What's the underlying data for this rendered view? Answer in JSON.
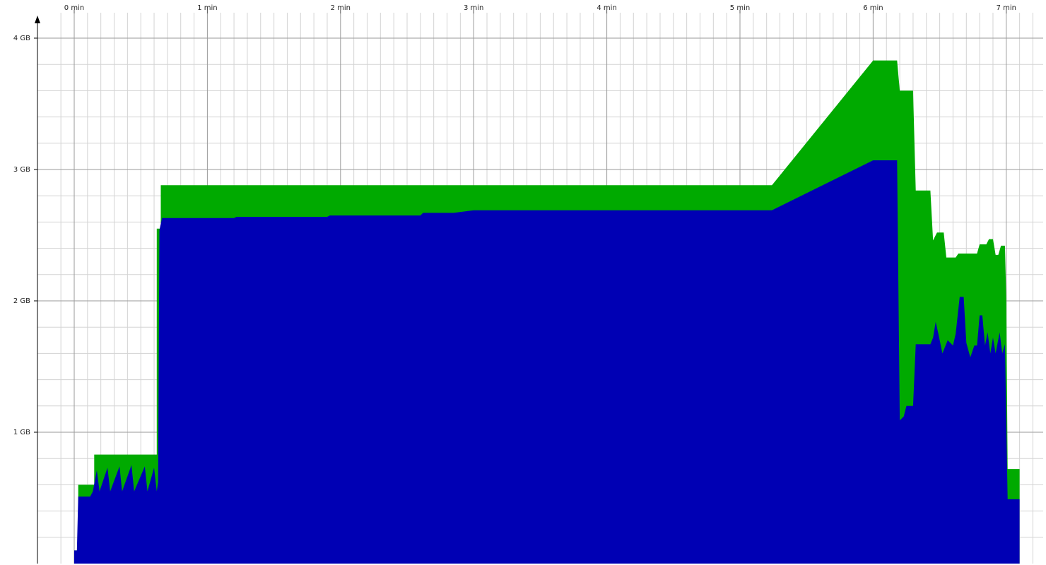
{
  "chart_data": {
    "type": "area",
    "stacked": true,
    "title": "",
    "xlabel": "",
    "ylabel": "",
    "x_unit": "min",
    "y_unit": "GB",
    "xlim": [
      -0.05,
      7.27
    ],
    "ylim": [
      0,
      4.2
    ],
    "x_ticks": [
      {
        "value": 0,
        "label": "0 min"
      },
      {
        "value": 1,
        "label": "1 min"
      },
      {
        "value": 2,
        "label": "2 min"
      },
      {
        "value": 3,
        "label": "3 min"
      },
      {
        "value": 4,
        "label": "4 min"
      },
      {
        "value": 5,
        "label": "5 min"
      },
      {
        "value": 6,
        "label": "6 min"
      },
      {
        "value": 7,
        "label": "7 min"
      }
    ],
    "y_ticks": [
      {
        "value": 1,
        "label": "1 GB"
      },
      {
        "value": 2,
        "label": "2 GB"
      },
      {
        "value": 3,
        "label": "3 GB"
      },
      {
        "value": 4,
        "label": "4 GB"
      }
    ],
    "grid": true,
    "legend": "none",
    "series": [
      {
        "color": "#00aa00",
        "points": [
          [
            0,
            0
          ],
          [
            0,
            0.1
          ],
          [
            0.03,
            0.1
          ],
          [
            0.03,
            0.6
          ],
          [
            0.12,
            0.6
          ],
          [
            0.15,
            0.6
          ],
          [
            0.15,
            0.83
          ],
          [
            0.35,
            0.83
          ],
          [
            0.62,
            0.83
          ],
          [
            0.62,
            2.55
          ],
          [
            0.65,
            2.55
          ],
          [
            0.65,
            2.88
          ],
          [
            3.0,
            2.88
          ],
          [
            5.24,
            2.88
          ],
          [
            6.0,
            3.83
          ],
          [
            6.18,
            3.83
          ],
          [
            6.2,
            3.6
          ],
          [
            6.3,
            3.6
          ],
          [
            6.32,
            2.84
          ],
          [
            6.43,
            2.84
          ],
          [
            6.45,
            2.46
          ],
          [
            6.48,
            2.52
          ],
          [
            6.53,
            2.52
          ],
          [
            6.55,
            2.33
          ],
          [
            6.62,
            2.33
          ],
          [
            6.64,
            2.36
          ],
          [
            6.78,
            2.36
          ],
          [
            6.8,
            2.43
          ],
          [
            6.85,
            2.43
          ],
          [
            6.87,
            2.47
          ],
          [
            6.9,
            2.47
          ],
          [
            6.92,
            2.35
          ],
          [
            6.94,
            2.35
          ],
          [
            6.96,
            2.42
          ],
          [
            6.99,
            2.42
          ],
          [
            7.0,
            2.0
          ],
          [
            7.01,
            0.72
          ],
          [
            7.1,
            0.72
          ],
          [
            7.1,
            0
          ]
        ]
      },
      {
        "color": "#0000b4",
        "points": [
          [
            0,
            0
          ],
          [
            0,
            0.1
          ],
          [
            0.02,
            0.1
          ],
          [
            0.03,
            0.51
          ],
          [
            0.12,
            0.51
          ],
          [
            0.14,
            0.55
          ],
          [
            0.17,
            0.71
          ],
          [
            0.19,
            0.55
          ],
          [
            0.25,
            0.73
          ],
          [
            0.27,
            0.55
          ],
          [
            0.34,
            0.74
          ],
          [
            0.36,
            0.55
          ],
          [
            0.43,
            0.75
          ],
          [
            0.45,
            0.55
          ],
          [
            0.53,
            0.74
          ],
          [
            0.55,
            0.55
          ],
          [
            0.6,
            0.73
          ],
          [
            0.62,
            0.55
          ],
          [
            0.63,
            0.62
          ],
          [
            0.64,
            2.54
          ],
          [
            0.66,
            2.63
          ],
          [
            1.2,
            2.63
          ],
          [
            1.22,
            2.64
          ],
          [
            1.9,
            2.64
          ],
          [
            1.92,
            2.65
          ],
          [
            2.6,
            2.65
          ],
          [
            2.62,
            2.67
          ],
          [
            2.85,
            2.67
          ],
          [
            3.0,
            2.69
          ],
          [
            5.24,
            2.69
          ],
          [
            6.0,
            3.07
          ],
          [
            6.18,
            3.07
          ],
          [
            6.2,
            1.09
          ],
          [
            6.23,
            1.12
          ],
          [
            6.25,
            1.2
          ],
          [
            6.3,
            1.2
          ],
          [
            6.32,
            1.67
          ],
          [
            6.43,
            1.67
          ],
          [
            6.45,
            1.72
          ],
          [
            6.47,
            1.84
          ],
          [
            6.49,
            1.75
          ],
          [
            6.52,
            1.6
          ],
          [
            6.56,
            1.7
          ],
          [
            6.6,
            1.66
          ],
          [
            6.62,
            1.75
          ],
          [
            6.65,
            2.03
          ],
          [
            6.68,
            2.03
          ],
          [
            6.7,
            1.68
          ],
          [
            6.73,
            1.57
          ],
          [
            6.76,
            1.66
          ],
          [
            6.78,
            1.66
          ],
          [
            6.8,
            1.89
          ],
          [
            6.82,
            1.89
          ],
          [
            6.84,
            1.66
          ],
          [
            6.86,
            1.76
          ],
          [
            6.88,
            1.6
          ],
          [
            6.9,
            1.72
          ],
          [
            6.92,
            1.6
          ],
          [
            6.95,
            1.76
          ],
          [
            6.97,
            1.6
          ],
          [
            6.99,
            1.67
          ],
          [
            7.01,
            0.49
          ],
          [
            7.1,
            0.49
          ],
          [
            7.1,
            0
          ]
        ]
      }
    ]
  }
}
